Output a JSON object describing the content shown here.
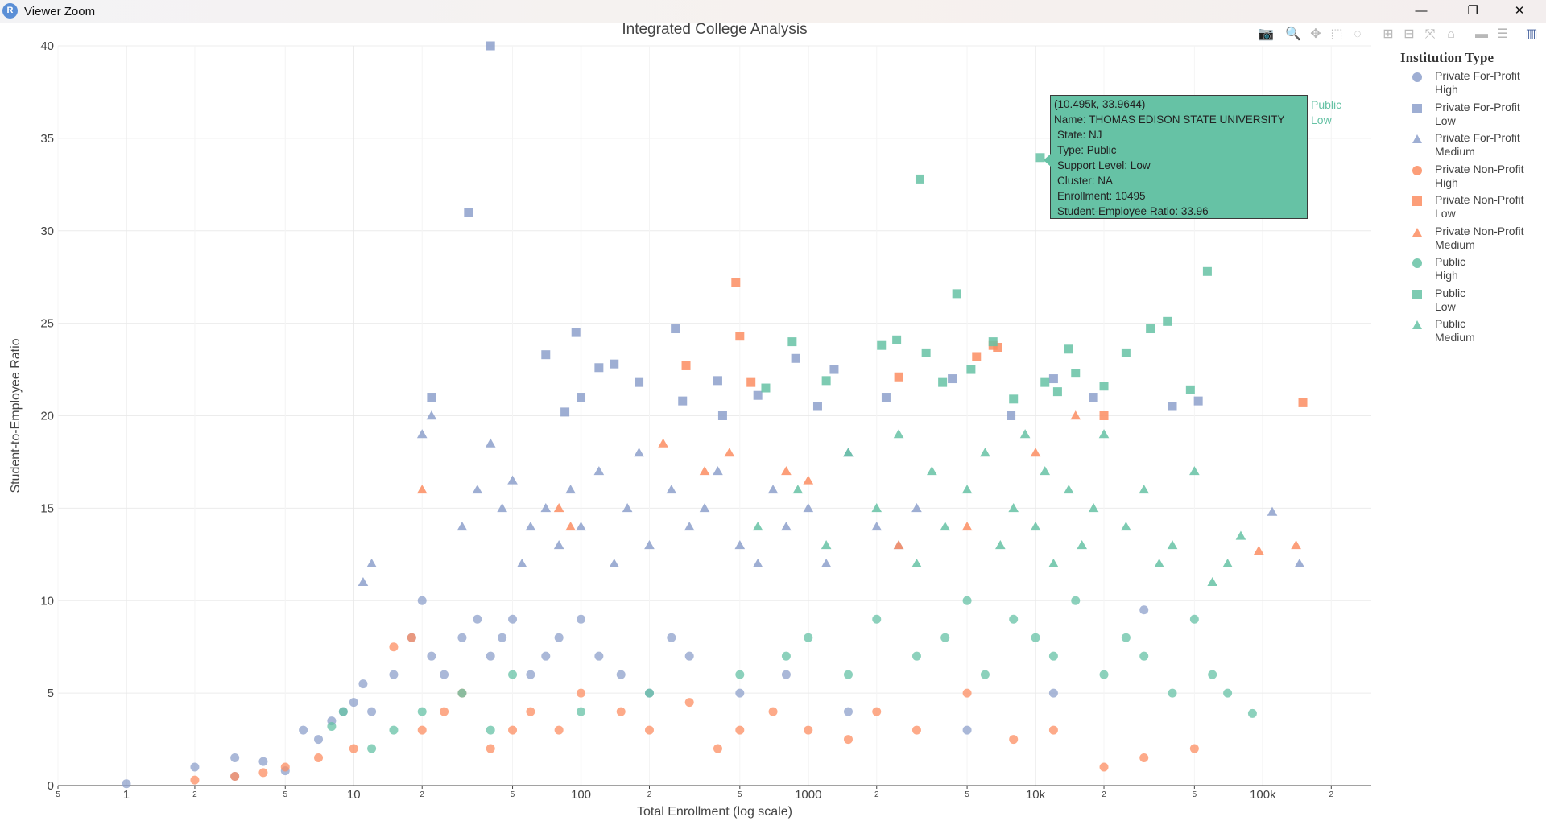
{
  "window": {
    "title": "Viewer Zoom",
    "app_icon_letter": "R",
    "minimize_label": "—",
    "restore_label": "❐",
    "close_label": "✕"
  },
  "modebar": [
    "camera-icon",
    "zoom-icon",
    "pan-icon",
    "box-select-icon",
    "lasso-icon",
    "zoom-in-icon",
    "zoom-out-icon",
    "autoscale-icon",
    "reset-axes-icon",
    "spike-lines-icon",
    "compare-hover-icon",
    "plotly-logo-icon"
  ],
  "tooltip": {
    "header": "(10.495k, 33.9644)",
    "name": "Name: THOMAS EDISON STATE UNIVERSITY",
    "state": "State: NJ",
    "type": "Type: Public",
    "support": "Support Level: Low",
    "cluster": "Cluster: NA",
    "enrollment": "Enrollment: 10495",
    "ratio": "Student-Employee Ratio: 33.96",
    "trace_name_1": "Public",
    "trace_name_2": "Low"
  },
  "legend": {
    "title": "Institution Type",
    "items": [
      {
        "line1": "Private For-Profit",
        "line2": "High",
        "symbol": "circle",
        "color": "#8da0cb"
      },
      {
        "line1": "Private For-Profit",
        "line2": "Low",
        "symbol": "square",
        "color": "#8da0cb"
      },
      {
        "line1": "Private For-Profit",
        "line2": "Medium",
        "symbol": "triangle",
        "color": "#8da0cb"
      },
      {
        "line1": "Private Non-Profit",
        "line2": "High",
        "symbol": "circle",
        "color": "#fc8d62"
      },
      {
        "line1": "Private Non-Profit",
        "line2": "Low",
        "symbol": "square",
        "color": "#fc8d62"
      },
      {
        "line1": "Private Non-Profit",
        "line2": "Medium",
        "symbol": "triangle",
        "color": "#fc8d62"
      },
      {
        "line1": "Public",
        "line2": "High",
        "symbol": "circle",
        "color": "#66c2a5"
      },
      {
        "line1": "Public",
        "line2": "Low",
        "symbol": "square",
        "color": "#66c2a5"
      },
      {
        "line1": "Public",
        "line2": "Medium",
        "symbol": "triangle",
        "color": "#66c2a5"
      }
    ]
  },
  "chart_data": {
    "type": "scatter",
    "title": "Integrated College Analysis",
    "xlabel": "Total Enrollment (log scale)",
    "ylabel": "Student-to-Employee Ratio",
    "x_scale": "log",
    "xlim": [
      0.5,
      300000
    ],
    "ylim": [
      0,
      40
    ],
    "grid": true,
    "legend_position": "right",
    "x_major_ticks": [
      {
        "v": 1,
        "label": "1"
      },
      {
        "v": 10,
        "label": "10"
      },
      {
        "v": 100,
        "label": "100"
      },
      {
        "v": 1000,
        "label": "1000"
      },
      {
        "v": 10000,
        "label": "10k"
      },
      {
        "v": 100000,
        "label": "100k"
      }
    ],
    "x_minor_ticks": [
      {
        "v": 0.5,
        "label": "5"
      },
      {
        "v": 2,
        "label": "2"
      },
      {
        "v": 5,
        "label": "5"
      },
      {
        "v": 20,
        "label": "2"
      },
      {
        "v": 50,
        "label": "5"
      },
      {
        "v": 200,
        "label": "2"
      },
      {
        "v": 500,
        "label": "5"
      },
      {
        "v": 2000,
        "label": "2"
      },
      {
        "v": 5000,
        "label": "5"
      },
      {
        "v": 20000,
        "label": "2"
      },
      {
        "v": 50000,
        "label": "5"
      },
      {
        "v": 200000,
        "label": "2"
      }
    ],
    "y_ticks": [
      0,
      5,
      10,
      15,
      20,
      25,
      30,
      35,
      40
    ],
    "series": [
      {
        "name": "Private For-Profit High",
        "symbol": "circle",
        "color": "#8da0cb",
        "x": [
          1,
          2,
          3,
          3,
          4,
          5,
          6,
          7,
          8,
          9,
          10,
          11,
          12,
          15,
          18,
          20,
          22,
          25,
          30,
          35,
          40,
          45,
          50,
          60,
          70,
          80,
          100,
          120,
          150,
          200,
          250,
          300,
          500,
          800,
          1500,
          5000,
          12000,
          30000
        ],
        "y": [
          0.1,
          1,
          1.5,
          0.5,
          1.3,
          0.8,
          3,
          2.5,
          3.5,
          4,
          4.5,
          5.5,
          4,
          6,
          8,
          10,
          7,
          6,
          8,
          9,
          7,
          8,
          9,
          6,
          7,
          8,
          9,
          7,
          6,
          5,
          8,
          7,
          5,
          6,
          4,
          3,
          5,
          9.5
        ]
      },
      {
        "name": "Private For-Profit Low",
        "symbol": "square",
        "color": "#8da0cb",
        "x": [
          22,
          32,
          40,
          70,
          85,
          95,
          100,
          120,
          140,
          180,
          260,
          280,
          400,
          420,
          600,
          880,
          1100,
          1300,
          2200,
          4300,
          7800,
          12000,
          18000,
          40000,
          52000
        ],
        "y": [
          21,
          31,
          40,
          23.3,
          20.2,
          24.5,
          21,
          22.6,
          22.8,
          21.8,
          24.7,
          20.8,
          21.9,
          20,
          21.1,
          23.1,
          20.5,
          22.5,
          21,
          22,
          20,
          22,
          21,
          20.5,
          20.8
        ]
      },
      {
        "name": "Private For-Profit Medium",
        "symbol": "triangle",
        "color": "#8da0cb",
        "x": [
          11,
          12,
          20,
          22,
          30,
          35,
          40,
          45,
          50,
          55,
          60,
          70,
          80,
          90,
          100,
          120,
          140,
          160,
          180,
          200,
          250,
          300,
          350,
          400,
          500,
          600,
          700,
          800,
          1000,
          1200,
          1500,
          2000,
          2500,
          3000,
          110000,
          145000
        ],
        "y": [
          11,
          12,
          19,
          20,
          14,
          16,
          18.5,
          15,
          16.5,
          12,
          14,
          15,
          13,
          16,
          14,
          17,
          12,
          15,
          18,
          13,
          16,
          14,
          15,
          17,
          13,
          12,
          16,
          14,
          15,
          12,
          18,
          14,
          13,
          15,
          14.8,
          12
        ]
      },
      {
        "name": "Private Non-Profit High",
        "symbol": "circle",
        "color": "#fc8d62",
        "x": [
          2,
          3,
          4,
          5,
          7,
          10,
          15,
          18,
          20,
          25,
          30,
          40,
          50,
          60,
          80,
          100,
          150,
          200,
          300,
          400,
          500,
          700,
          1000,
          1500,
          2000,
          3000,
          5000,
          8000,
          12000,
          20000,
          30000,
          50000
        ],
        "y": [
          0.3,
          0.5,
          0.7,
          1,
          1.5,
          2,
          7.5,
          8,
          3,
          4,
          5,
          2,
          3,
          4,
          3,
          5,
          4,
          3,
          4.5,
          2,
          3,
          4,
          3,
          2.5,
          4,
          3,
          5,
          2.5,
          3,
          1,
          1.5,
          2
        ]
      },
      {
        "name": "Private Non-Profit Low",
        "symbol": "square",
        "color": "#fc8d62",
        "x": [
          290,
          480,
          500,
          560,
          2500,
          5500,
          6500,
          6800,
          20000,
          150000
        ],
        "y": [
          22.7,
          27.2,
          24.3,
          21.8,
          22.1,
          23.2,
          23.8,
          23.7,
          20,
          20.7
        ]
      },
      {
        "name": "Private Non-Profit Medium",
        "symbol": "triangle",
        "color": "#fc8d62",
        "x": [
          20,
          80,
          90,
          230,
          350,
          450,
          800,
          1000,
          2500,
          5000,
          10000,
          15000,
          96000,
          140000
        ],
        "y": [
          16,
          15,
          14,
          18.5,
          17,
          18,
          17,
          16.5,
          13,
          14,
          18,
          20,
          12.7,
          13
        ]
      },
      {
        "name": "Public High",
        "symbol": "circle",
        "color": "#66c2a5",
        "x": [
          8,
          9,
          12,
          15,
          20,
          30,
          40,
          50,
          100,
          200,
          500,
          800,
          1000,
          1500,
          2000,
          3000,
          4000,
          5000,
          6000,
          8000,
          10000,
          12000,
          15000,
          20000,
          25000,
          30000,
          40000,
          50000,
          60000,
          70000,
          90000
        ],
        "y": [
          3.2,
          4,
          2,
          3,
          4,
          5,
          3,
          6,
          4,
          5,
          6,
          7,
          8,
          6,
          9,
          7,
          8,
          10,
          6,
          9,
          8,
          7,
          10,
          6,
          8,
          7,
          5,
          9,
          6,
          5,
          3.9
        ]
      },
      {
        "name": "Public Low",
        "symbol": "square",
        "color": "#66c2a5",
        "x": [
          650,
          850,
          1200,
          2100,
          2450,
          3100,
          3300,
          3900,
          4500,
          5200,
          6500,
          8000,
          10495,
          11000,
          12500,
          14000,
          15000,
          20000,
          25000,
          32000,
          38000,
          48000,
          57000
        ],
        "y": [
          21.5,
          24,
          21.9,
          23.8,
          24.1,
          32.8,
          23.4,
          21.8,
          26.6,
          22.5,
          24,
          20.9,
          33.96,
          21.8,
          21.3,
          23.6,
          22.3,
          21.6,
          23.4,
          24.7,
          25.1,
          21.4,
          27.8
        ]
      },
      {
        "name": "Public Medium",
        "symbol": "triangle",
        "color": "#66c2a5",
        "x": [
          600,
          900,
          1200,
          1500,
          2000,
          2500,
          3000,
          3500,
          4000,
          5000,
          6000,
          7000,
          8000,
          9000,
          10000,
          11000,
          12000,
          14000,
          16000,
          18000,
          20000,
          25000,
          30000,
          35000,
          40000,
          50000,
          60000,
          70000,
          80000
        ],
        "y": [
          14,
          16,
          13,
          18,
          15,
          19,
          12,
          17,
          14,
          16,
          18,
          13,
          15,
          19,
          14,
          17,
          12,
          16,
          13,
          15,
          19,
          14,
          16,
          12,
          13,
          17,
          11,
          12,
          13.5
        ]
      }
    ]
  }
}
